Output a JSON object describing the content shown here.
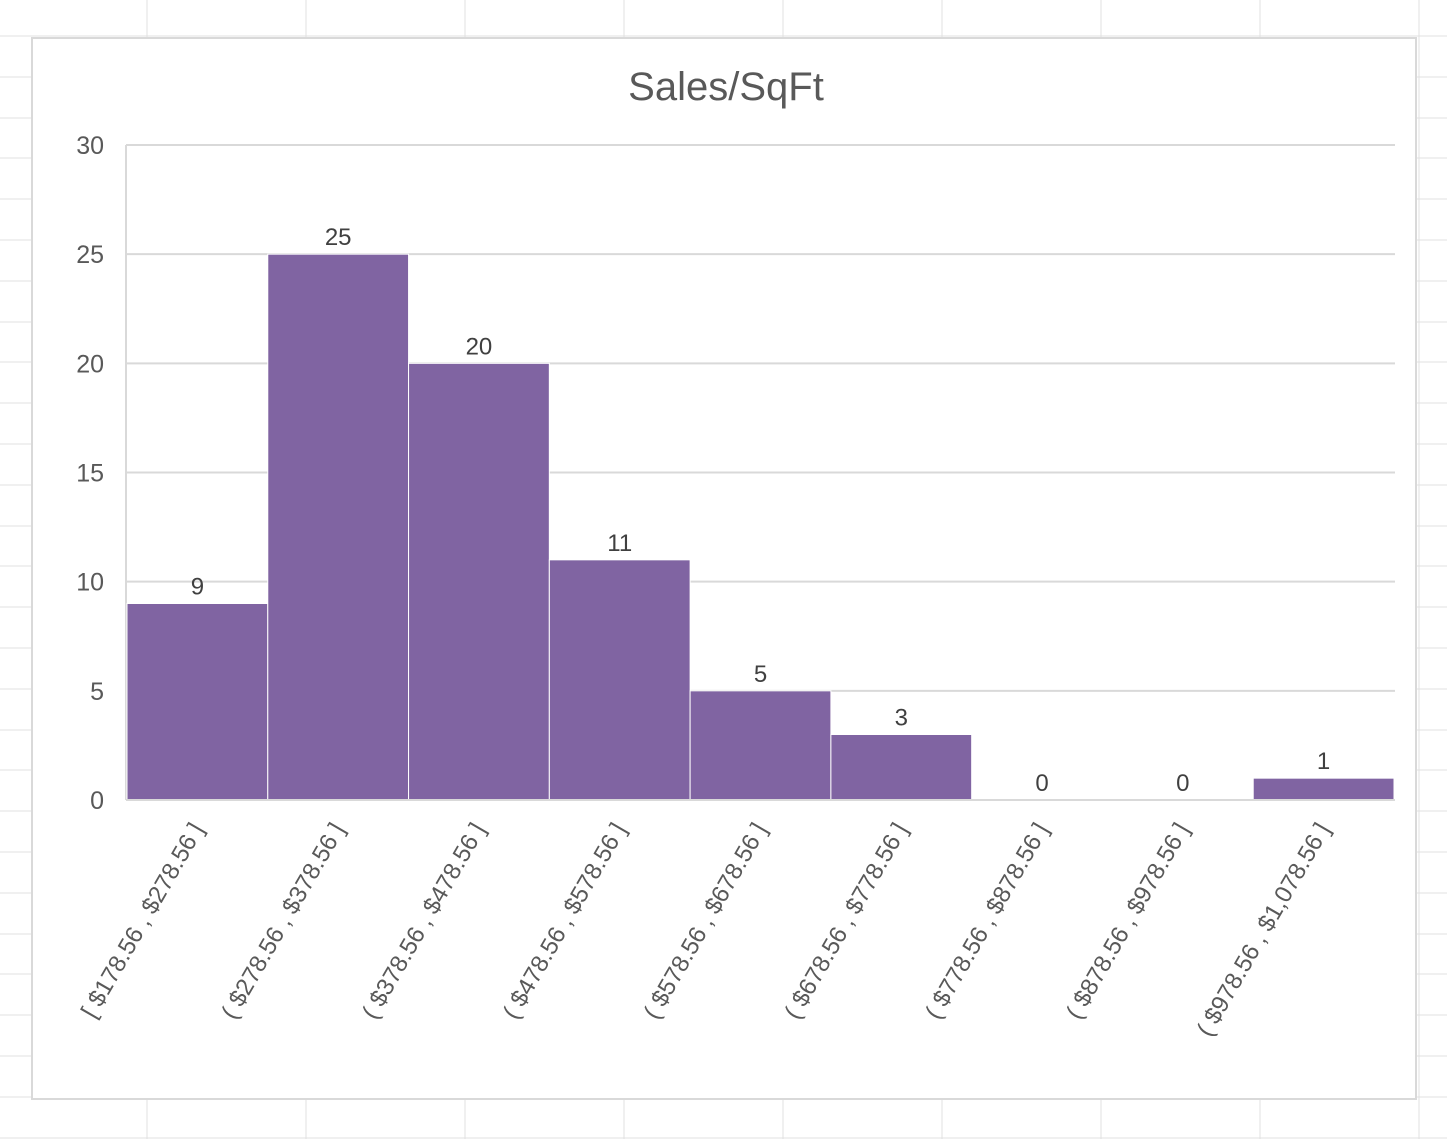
{
  "chart_data": {
    "type": "bar",
    "title": "Sales/SqFt",
    "xlabel": "",
    "ylabel": "",
    "categories": [
      "[ $178.56 , $278.56 ]",
      "( $278.56 , $378.56 ]",
      "( $378.56 , $478.56 ]",
      "( $478.56 , $578.56 ]",
      "( $578.56 , $678.56 ]",
      "( $678.56 , $778.56 ]",
      "( $778.56 , $878.56 ]",
      "( $878.56 , $978.56 ]",
      "( $978.56 , $1,078.56 ]"
    ],
    "values": [
      9,
      25,
      20,
      11,
      5,
      3,
      0,
      0,
      1
    ],
    "data_labels": [
      "9",
      "25",
      "20",
      "11",
      "5",
      "3",
      "0",
      "0",
      "1"
    ],
    "ylim": [
      0,
      30
    ],
    "yticks": [
      0,
      5,
      10,
      15,
      20,
      25,
      30
    ],
    "ytick_labels": [
      "0",
      "5",
      "10",
      "15",
      "20",
      "25",
      "30"
    ],
    "grid": true,
    "legend": "none",
    "colors": {
      "bar": "#8064a2",
      "gridline": "#d9d9d9",
      "text": "#595959"
    }
  }
}
